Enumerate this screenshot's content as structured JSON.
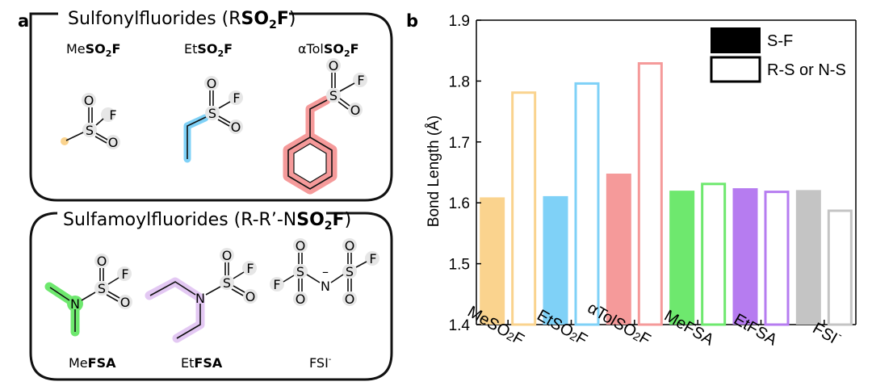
{
  "panel_a": {
    "letter": "a",
    "box1": {
      "title_pre": "Sulfonylfluorides (R",
      "title_bold": "SO",
      "title_sub": "2",
      "title_boldF": "F",
      "title_post": ")",
      "molecules": [
        {
          "prefix": "Me",
          "bold": "SO",
          "sub": "2",
          "boldF": "F"
        },
        {
          "prefix": "Et",
          "bold": "SO",
          "sub": "2",
          "boldF": "F"
        },
        {
          "prefix": "αTol",
          "bold": "SO",
          "sub": "2",
          "boldF": "F"
        }
      ]
    },
    "box2": {
      "title_pre": "Sulfamoylfluorides (R-R’-N",
      "title_bold": "SO",
      "title_sub": "2",
      "title_boldF": "F",
      "title_post": ")",
      "molecules": [
        {
          "prefix": "Me",
          "bold": "FSA",
          "sup": ""
        },
        {
          "prefix": "Et",
          "bold": "FSA",
          "sup": ""
        },
        {
          "prefix": "FSI",
          "bold": "",
          "sup": "-"
        }
      ]
    },
    "atoms": {
      "S": "S",
      "O": "O",
      "F": "F",
      "N": "N",
      "minus": "–"
    }
  },
  "chart_data": {
    "panel_letter": "b",
    "type": "bar",
    "categories": [
      {
        "base": "MeSO",
        "sub": "2",
        "tail": "F",
        "sup": ""
      },
      {
        "base": "EtSO",
        "sub": "2",
        "tail": "F",
        "sup": ""
      },
      {
        "base": "αTolSO",
        "sub": "2",
        "tail": "F",
        "sup": ""
      },
      {
        "base": "MeFSA",
        "sub": "",
        "tail": "",
        "sup": ""
      },
      {
        "base": "EtFSA",
        "sub": "",
        "tail": "",
        "sup": ""
      },
      {
        "base": "FSI",
        "sub": "",
        "tail": "",
        "sup": "-"
      }
    ],
    "colors": [
      "#fad38e",
      "#7fd1f7",
      "#f59a9a",
      "#6ee86e",
      "#b67cf0",
      "#c4c4c4"
    ],
    "series": [
      {
        "name": "S-F",
        "style": "filled",
        "values": [
          1.609,
          1.611,
          1.648,
          1.62,
          1.624,
          1.621
        ]
      },
      {
        "name": "R-S or N-S",
        "style": "outline",
        "values": [
          1.783,
          1.798,
          1.831,
          1.633,
          1.62,
          1.589
        ]
      }
    ],
    "ylabel": "Bond Length (Å)",
    "xlabel": "",
    "ylim": [
      1.4,
      1.9
    ],
    "yticks": [
      "1.4",
      "1.5",
      "1.6",
      "1.7",
      "1.8",
      "1.9"
    ],
    "legend": "top-right",
    "grid": false
  }
}
